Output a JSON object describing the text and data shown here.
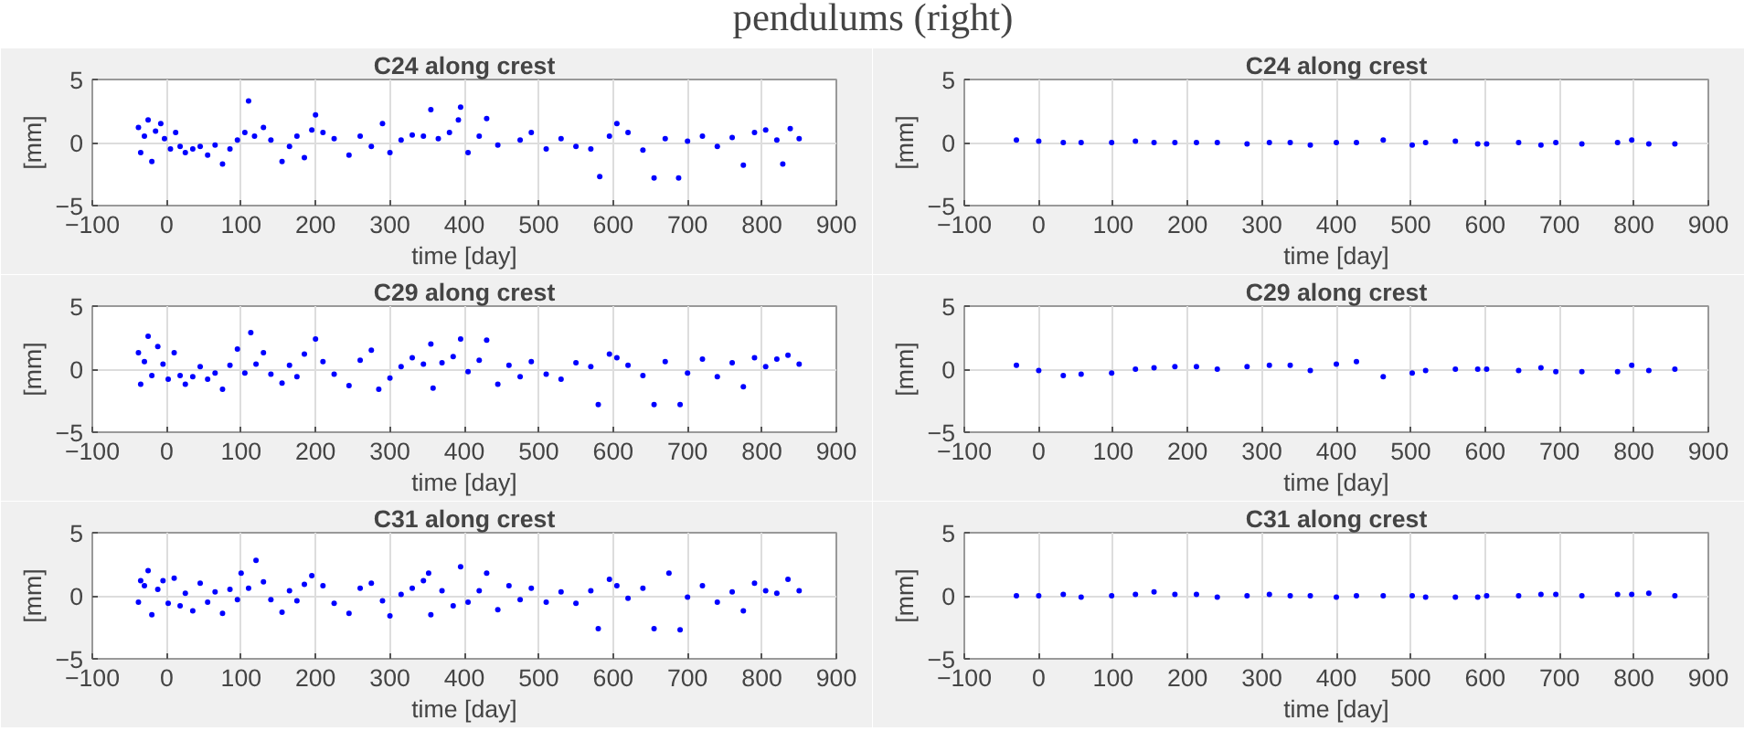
{
  "chart_data": [
    {
      "type": "other",
      "title": "pendulums (right)"
    },
    {
      "type": "scatter",
      "title": "C24 along crest",
      "xlabel": "time [day]",
      "ylabel": "[mm]",
      "marker": "circle",
      "grid": true,
      "xlim": [
        -100,
        900
      ],
      "ylim": [
        -5,
        5
      ],
      "xticks": [
        -100,
        0,
        100,
        200,
        300,
        400,
        500,
        600,
        700,
        800,
        900
      ],
      "yticks": [
        -5,
        0,
        5
      ],
      "series": [
        {
          "color": "#0000ff",
          "x": [
            -38,
            -35,
            -30,
            -25,
            -20,
            -15,
            -8,
            -3,
            5,
            12,
            18,
            25,
            35,
            45,
            55,
            65,
            75,
            85,
            95,
            105,
            110,
            118,
            130,
            140,
            155,
            165,
            175,
            185,
            195,
            200,
            210,
            225,
            245,
            260,
            275,
            290,
            300,
            315,
            330,
            345,
            355,
            365,
            380,
            392,
            395,
            405,
            420,
            430,
            445,
            475,
            490,
            510,
            530,
            550,
            570,
            582,
            595,
            605,
            620,
            640,
            655,
            670,
            688,
            700,
            720,
            740,
            760,
            775,
            790,
            805,
            820,
            828,
            838,
            850
          ],
          "values": [
            1.2,
            -0.8,
            0.5,
            1.8,
            -1.5,
            0.9,
            1.5,
            0.3,
            -0.5,
            0.8,
            -0.3,
            -0.8,
            -0.5,
            -0.3,
            -1.0,
            -0.2,
            -1.7,
            -0.5,
            0.2,
            0.8,
            3.3,
            0.5,
            1.2,
            0.2,
            -1.5,
            -0.3,
            0.5,
            -1.2,
            1.0,
            2.2,
            0.8,
            0.3,
            -1.0,
            0.5,
            -0.3,
            1.5,
            -0.8,
            0.2,
            0.6,
            0.5,
            2.6,
            0.3,
            0.8,
            1.8,
            2.8,
            -0.8,
            0.5,
            1.9,
            -0.2,
            0.2,
            0.8,
            -0.5,
            0.3,
            -0.3,
            -0.5,
            -2.7,
            0.5,
            1.5,
            0.8,
            -0.6,
            -2.8,
            0.3,
            -2.8,
            0.1,
            0.5,
            -0.3,
            0.4,
            -1.8,
            0.8,
            1.0,
            0.2,
            -1.7,
            1.1,
            0.3
          ]
        }
      ]
    },
    {
      "type": "scatter",
      "title": "C24 along crest",
      "xlabel": "time [day]",
      "ylabel": "[mm]",
      "marker": "circle",
      "grid": true,
      "xlim": [
        -100,
        900
      ],
      "ylim": [
        -5,
        5
      ],
      "xticks": [
        -100,
        0,
        100,
        200,
        300,
        400,
        500,
        600,
        700,
        800,
        900
      ],
      "yticks": [
        -5,
        0,
        5
      ],
      "series": [
        {
          "color": "#0000ff",
          "x": [
            -30,
            0,
            33,
            57,
            98,
            130,
            155,
            183,
            212,
            240,
            280,
            310,
            338,
            365,
            400,
            427,
            463,
            502,
            520,
            560,
            590,
            602,
            645,
            675,
            695,
            730,
            778,
            797,
            820,
            855
          ],
          "values": [
            0.2,
            0.1,
            0,
            0,
            0,
            0.1,
            0,
            0,
            0,
            0,
            -0.1,
            0,
            0,
            -0.2,
            0,
            0,
            0.2,
            -0.2,
            0,
            0.1,
            -0.1,
            -0.1,
            0,
            -0.2,
            0,
            -0.1,
            0,
            0.2,
            -0.1,
            -0.1
          ]
        }
      ]
    },
    {
      "type": "scatter",
      "title": "C29 along crest",
      "xlabel": "time [day]",
      "ylabel": "[mm]",
      "marker": "circle",
      "grid": true,
      "xlim": [
        -100,
        900
      ],
      "ylim": [
        -5,
        5
      ],
      "xticks": [
        -100,
        0,
        100,
        200,
        300,
        400,
        500,
        600,
        700,
        800,
        900
      ],
      "yticks": [
        -5,
        0,
        5
      ],
      "series": [
        {
          "color": "#0000ff",
          "x": [
            -38,
            -35,
            -30,
            -25,
            -20,
            -12,
            -5,
            2,
            10,
            18,
            25,
            35,
            45,
            55,
            65,
            75,
            85,
            95,
            105,
            113,
            120,
            130,
            140,
            155,
            165,
            175,
            185,
            200,
            210,
            225,
            245,
            260,
            275,
            285,
            300,
            315,
            330,
            345,
            355,
            358,
            370,
            385,
            395,
            405,
            420,
            430,
            445,
            460,
            475,
            490,
            510,
            530,
            550,
            570,
            580,
            595,
            605,
            620,
            640,
            655,
            670,
            690,
            700,
            720,
            740,
            760,
            775,
            790,
            805,
            820,
            835,
            850
          ],
          "values": [
            1.3,
            -1.2,
            0.6,
            2.6,
            -0.5,
            1.8,
            0.4,
            -0.8,
            1.3,
            -0.5,
            -1.2,
            -0.6,
            0.2,
            -0.8,
            -0.3,
            -1.6,
            0.3,
            1.6,
            -0.3,
            2.9,
            0.4,
            1.3,
            -0.4,
            -1.1,
            0.3,
            -0.6,
            1.2,
            2.4,
            0.6,
            -0.4,
            -1.3,
            0.7,
            1.5,
            -1.6,
            -0.7,
            0.2,
            0.9,
            0.4,
            2.0,
            -1.5,
            0.5,
            1.0,
            2.4,
            -0.2,
            0.7,
            2.3,
            -1.2,
            0.3,
            -0.6,
            0.6,
            -0.4,
            -0.8,
            0.5,
            0.2,
            -2.8,
            1.2,
            0.9,
            0.3,
            -0.5,
            -2.8,
            0.6,
            -2.8,
            -0.3,
            0.8,
            -0.6,
            0.5,
            -1.4,
            0.9,
            0.2,
            0.8,
            1.1,
            0.4
          ]
        }
      ]
    },
    {
      "type": "scatter",
      "title": "C29 along crest",
      "xlabel": "time [day]",
      "ylabel": "[mm]",
      "marker": "circle",
      "grid": true,
      "xlim": [
        -100,
        900
      ],
      "ylim": [
        -5,
        5
      ],
      "xticks": [
        -100,
        0,
        100,
        200,
        300,
        400,
        500,
        600,
        700,
        800,
        900
      ],
      "yticks": [
        -5,
        0,
        5
      ],
      "series": [
        {
          "color": "#0000ff",
          "x": [
            -30,
            0,
            33,
            57,
            98,
            130,
            155,
            183,
            212,
            240,
            280,
            310,
            338,
            365,
            400,
            427,
            463,
            502,
            520,
            560,
            590,
            602,
            645,
            675,
            695,
            730,
            778,
            797,
            820,
            855
          ],
          "values": [
            0.3,
            -0.1,
            -0.5,
            -0.4,
            -0.3,
            0,
            0.1,
            0.2,
            0.2,
            0,
            0.2,
            0.3,
            0.3,
            -0.1,
            0.4,
            0.6,
            -0.6,
            -0.3,
            -0.1,
            0,
            0,
            0,
            -0.1,
            0.1,
            -0.2,
            -0.2,
            -0.2,
            0.3,
            -0.1,
            0
          ]
        }
      ]
    },
    {
      "type": "scatter",
      "title": "C31 along crest",
      "xlabel": "time [day]",
      "ylabel": "[mm]",
      "marker": "circle",
      "grid": true,
      "xlim": [
        -100,
        900
      ],
      "ylim": [
        -5,
        5
      ],
      "xticks": [
        -100,
        0,
        100,
        200,
        300,
        400,
        500,
        600,
        700,
        800,
        900
      ],
      "yticks": [
        -5,
        0,
        5
      ],
      "series": [
        {
          "color": "#0000ff",
          "x": [
            -38,
            -35,
            -30,
            -25,
            -20,
            -12,
            -5,
            2,
            10,
            18,
            25,
            35,
            45,
            55,
            65,
            75,
            85,
            95,
            100,
            110,
            120,
            130,
            140,
            155,
            165,
            175,
            185,
            195,
            210,
            225,
            245,
            260,
            275,
            290,
            300,
            315,
            330,
            345,
            352,
            355,
            370,
            385,
            395,
            405,
            420,
            430,
            445,
            460,
            475,
            490,
            510,
            530,
            550,
            570,
            580,
            595,
            605,
            620,
            640,
            655,
            675,
            690,
            700,
            720,
            740,
            760,
            775,
            790,
            805,
            820,
            835,
            850
          ],
          "values": [
            -0.5,
            1.2,
            0.8,
            2.0,
            -1.5,
            0.5,
            1.2,
            -0.6,
            1.4,
            -0.8,
            0.2,
            -1.2,
            1.0,
            -0.5,
            0.3,
            -1.4,
            0.5,
            -0.3,
            1.8,
            0.6,
            2.8,
            1.1,
            -0.3,
            -1.3,
            0.4,
            -0.4,
            0.9,
            1.6,
            0.8,
            -0.6,
            -1.4,
            0.6,
            1.0,
            -0.4,
            -1.6,
            0.1,
            0.6,
            1.2,
            1.8,
            -1.5,
            0.4,
            -0.8,
            2.3,
            -0.5,
            0.4,
            1.8,
            -1.1,
            0.8,
            -0.3,
            0.6,
            -0.5,
            0.3,
            -0.6,
            0.4,
            -2.6,
            1.3,
            0.8,
            -0.2,
            0.6,
            -2.6,
            1.8,
            -2.7,
            -0.1,
            0.8,
            -0.5,
            0.3,
            -1.2,
            1.0,
            0.4,
            0.2,
            1.3,
            0.4
          ]
        }
      ]
    },
    {
      "type": "scatter",
      "title": "C31 along crest",
      "xlabel": "time [day]",
      "ylabel": "[mm]",
      "marker": "circle",
      "grid": true,
      "xlim": [
        -100,
        900
      ],
      "ylim": [
        -5,
        5
      ],
      "xticks": [
        -100,
        0,
        100,
        200,
        300,
        400,
        500,
        600,
        700,
        800,
        900
      ],
      "yticks": [
        -5,
        0,
        5
      ],
      "series": [
        {
          "color": "#0000ff",
          "x": [
            -30,
            0,
            33,
            57,
            98,
            130,
            155,
            183,
            212,
            240,
            280,
            310,
            338,
            365,
            400,
            427,
            463,
            502,
            520,
            560,
            590,
            602,
            645,
            675,
            695,
            730,
            778,
            797,
            820,
            855
          ],
          "values": [
            0,
            0,
            0.1,
            -0.1,
            0,
            0.1,
            0.3,
            0.1,
            0.1,
            -0.1,
            0,
            0.1,
            0,
            0,
            -0.1,
            0,
            0,
            0,
            -0.1,
            -0.1,
            -0.1,
            0,
            0,
            0.1,
            0.1,
            0,
            0.1,
            0.1,
            0.2,
            0
          ]
        }
      ]
    }
  ]
}
